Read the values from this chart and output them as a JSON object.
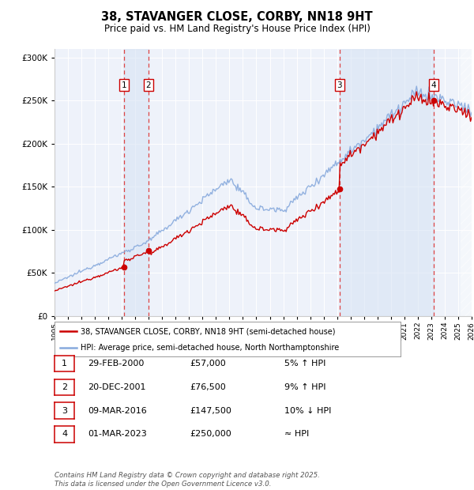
{
  "title": "38, STAVANGER CLOSE, CORBY, NN18 9HT",
  "subtitle": "Price paid vs. HM Land Registry's House Price Index (HPI)",
  "xmin": 1995,
  "xmax": 2026,
  "ymin": 0,
  "ymax": 310000,
  "yticks": [
    0,
    50000,
    100000,
    150000,
    200000,
    250000,
    300000
  ],
  "ytick_labels": [
    "£0",
    "£50K",
    "£100K",
    "£150K",
    "£200K",
    "£250K",
    "£300K"
  ],
  "transactions": [
    {
      "num": 1,
      "date": "29-FEB-2000",
      "price": 57000,
      "year": 2000.15,
      "pct": "5%",
      "dir": "↑",
      "vs": "HPI"
    },
    {
      "num": 2,
      "date": "20-DEC-2001",
      "price": 76500,
      "year": 2001.97,
      "pct": "9%",
      "dir": "↑",
      "vs": "HPI"
    },
    {
      "num": 3,
      "date": "09-MAR-2016",
      "price": 147500,
      "year": 2016.19,
      "pct": "10%",
      "dir": "↓",
      "vs": "HPI"
    },
    {
      "num": 4,
      "date": "01-MAR-2023",
      "price": 250000,
      "year": 2023.16,
      "pct": "≈",
      "dir": "",
      "vs": "HPI"
    }
  ],
  "legend_property": "38, STAVANGER CLOSE, CORBY, NN18 9HT (semi-detached house)",
  "legend_hpi": "HPI: Average price, semi-detached house, North Northamptonshire",
  "footer": "Contains HM Land Registry data © Crown copyright and database right 2025.\nThis data is licensed under the Open Government Licence v3.0.",
  "property_line_color": "#cc0000",
  "hpi_line_color": "#88aadd",
  "bg_color": "#ffffff",
  "plot_bg_color": "#eef2fa",
  "shade_color": "#d8e4f4",
  "dashed_line_color": "#dd4444",
  "grid_color": "#ffffff"
}
